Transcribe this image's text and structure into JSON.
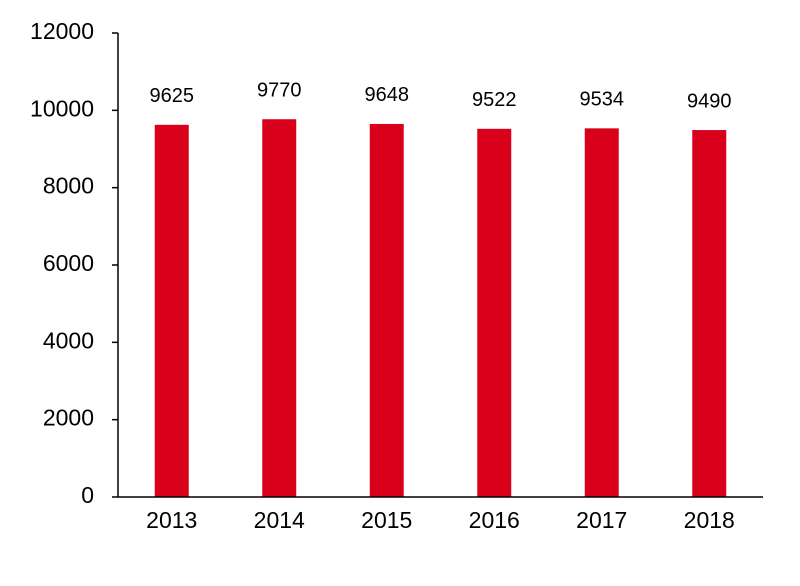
{
  "chart_data": {
    "type": "bar",
    "categories": [
      "2013",
      "2014",
      "2015",
      "2016",
      "2017",
      "2018"
    ],
    "values": [
      9625,
      9770,
      9648,
      9522,
      9534,
      9490
    ],
    "color": "#d9001b",
    "ylim": [
      0,
      12000
    ],
    "yticks": [
      0,
      2000,
      4000,
      6000,
      8000,
      10000,
      12000
    ],
    "grid": false
  }
}
